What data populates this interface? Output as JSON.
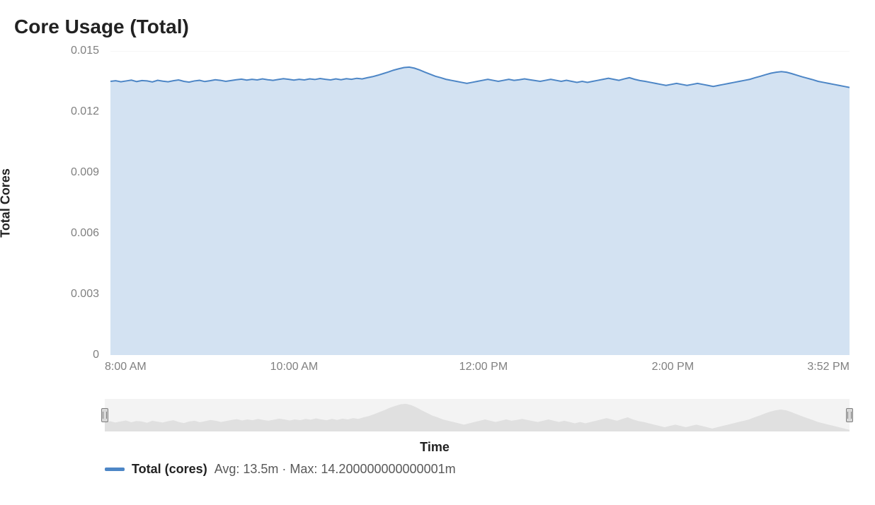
{
  "title": "Core Usage (Total)",
  "y_axis": {
    "label": "Total Cores",
    "min": 0,
    "max": 0.015,
    "ticks": [
      0,
      0.003,
      0.006,
      0.009,
      0.012,
      0.015
    ],
    "tick_labels": [
      "0",
      "0.003",
      "0.006",
      "0.009",
      "0.012",
      "0.015"
    ],
    "tick_color": "#808080",
    "tick_fontsize": 16,
    "label_fontsize": 18
  },
  "x_axis": {
    "label": "Time",
    "start_minutes": 480,
    "end_minutes": 952,
    "ticks_minutes": [
      480,
      600,
      720,
      840,
      952
    ],
    "tick_labels": [
      "8:00 AM",
      "10:00 AM",
      "12:00 PM",
      "2:00 PM",
      "3:52 PM"
    ],
    "tick_color": "#808080",
    "tick_fontsize": 16,
    "label_fontsize": 18
  },
  "chart": {
    "type": "area",
    "line_color": "#4d86c6",
    "line_width": 2,
    "fill_color": "#d3e2f2",
    "fill_opacity": 1.0,
    "grid_color": "#ececec",
    "grid_width": 1,
    "background_color": "#ffffff"
  },
  "series": {
    "name": "Total (cores)",
    "avg_text": "13.5m",
    "max_text": "14.200000000000001m",
    "stats_separator": " · ",
    "avg_prefix": "Avg: ",
    "max_prefix": "Max: ",
    "data": [
      0.0135,
      0.01353,
      0.01348,
      0.01352,
      0.01356,
      0.01349,
      0.01354,
      0.01352,
      0.01347,
      0.01355,
      0.01351,
      0.01348,
      0.01353,
      0.01357,
      0.0135,
      0.01346,
      0.01352,
      0.01355,
      0.01349,
      0.01353,
      0.01358,
      0.01355,
      0.0135,
      0.01354,
      0.01358,
      0.01361,
      0.01356,
      0.0136,
      0.01357,
      0.01362,
      0.01358,
      0.01355,
      0.01359,
      0.01363,
      0.0136,
      0.01356,
      0.0136,
      0.01357,
      0.01362,
      0.01359,
      0.01364,
      0.0136,
      0.01357,
      0.01362,
      0.01358,
      0.01363,
      0.0136,
      0.01365,
      0.01362,
      0.01368,
      0.01373,
      0.0138,
      0.01388,
      0.01396,
      0.01405,
      0.01412,
      0.01418,
      0.0142,
      0.01415,
      0.01406,
      0.01395,
      0.01385,
      0.01375,
      0.01368,
      0.0136,
      0.01355,
      0.0135,
      0.01345,
      0.0134,
      0.01345,
      0.0135,
      0.01355,
      0.0136,
      0.01355,
      0.0135,
      0.01355,
      0.0136,
      0.01355,
      0.01358,
      0.01362,
      0.01358,
      0.01354,
      0.0135,
      0.01355,
      0.0136,
      0.01355,
      0.0135,
      0.01355,
      0.0135,
      0.01345,
      0.0135,
      0.01345,
      0.0135,
      0.01355,
      0.0136,
      0.01365,
      0.0136,
      0.01355,
      0.01362,
      0.01368,
      0.0136,
      0.01354,
      0.0135,
      0.01345,
      0.0134,
      0.01335,
      0.0133,
      0.01335,
      0.0134,
      0.01335,
      0.0133,
      0.01335,
      0.0134,
      0.01335,
      0.0133,
      0.01325,
      0.0133,
      0.01335,
      0.0134,
      0.01345,
      0.0135,
      0.01355,
      0.0136,
      0.01368,
      0.01375,
      0.01383,
      0.0139,
      0.01395,
      0.01398,
      0.01395,
      0.01388,
      0.0138,
      0.01372,
      0.01365,
      0.01358,
      0.0135,
      0.01345,
      0.0134,
      0.01335,
      0.0133,
      0.01325,
      0.0132
    ]
  },
  "brush": {
    "track_color": "#f3f3f3",
    "sparkline_color": "#e0e0e0",
    "handle_bg": "#d8d8d8",
    "handle_border": "#7d7d7d",
    "left_pct": 0,
    "right_pct": 100
  }
}
